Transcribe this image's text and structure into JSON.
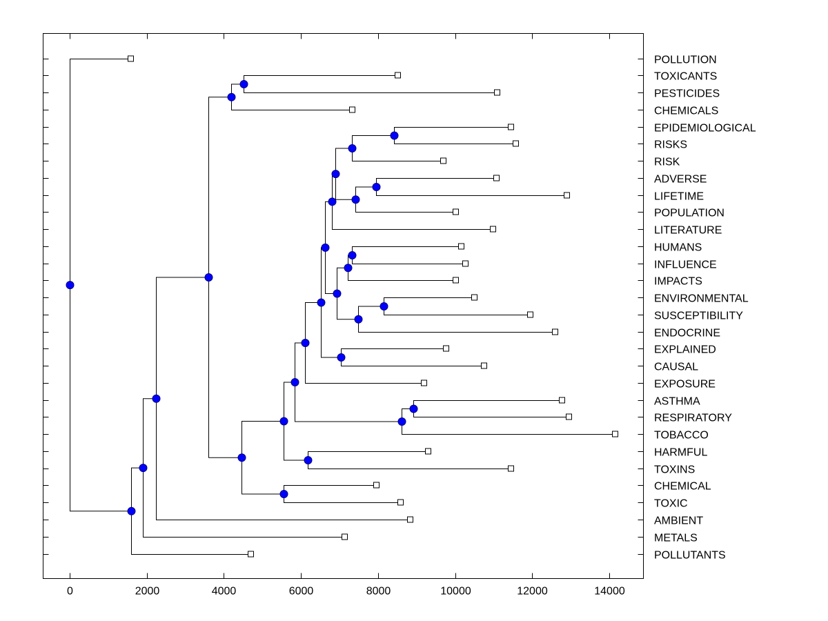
{
  "chart_data": {
    "type": "dendrogram",
    "title": "",
    "xlabel": "",
    "ylabel": "",
    "xlim": [
      -700,
      14880
    ],
    "x_ticks": [
      0,
      2000,
      4000,
      6000,
      8000,
      10000,
      12000,
      14000
    ],
    "x_tick_labels": [
      "0",
      "2000",
      "4000",
      "6000",
      "8000",
      "10000",
      "12000",
      "14000"
    ],
    "grid": false,
    "leaf_label_position": "right",
    "colors": {
      "node_fill": "#0000ff",
      "node_stroke": "#000080",
      "leaf_fill": "#ffffff",
      "line": "#000000"
    },
    "leaves": [
      {
        "id": "POLLUTION",
        "label": "POLLUTION",
        "value": 1593
      },
      {
        "id": "TOXICANTS",
        "label": "TOXICANTS",
        "value": 8521
      },
      {
        "id": "PESTICIDES",
        "label": "PESTICIDES",
        "value": 11099
      },
      {
        "id": "CHEMICALS",
        "label": "CHEMICALS",
        "value": 7340
      },
      {
        "id": "EPIDEMIOLOGICAL",
        "label": "EPIDEMIOLOGICAL",
        "value": 11457
      },
      {
        "id": "RISKS",
        "label": "RISKS",
        "value": 11583
      },
      {
        "id": "RISK",
        "label": "RISK",
        "value": 9703
      },
      {
        "id": "ADVERSE",
        "label": "ADVERSE",
        "value": 11081
      },
      {
        "id": "LIFETIME",
        "label": "LIFETIME",
        "value": 12907
      },
      {
        "id": "POPULATION",
        "label": "POPULATION",
        "value": 10025
      },
      {
        "id": "LITERATURE",
        "label": "LITERATURE",
        "value": 10992
      },
      {
        "id": "HUMANS",
        "label": "HUMANS",
        "value": 10168
      },
      {
        "id": "INFLUENCE",
        "label": "INFLUENCE",
        "value": 10276
      },
      {
        "id": "IMPACTS",
        "label": "IMPACTS",
        "value": 10025
      },
      {
        "id": "ENVIRONMENTAL",
        "label": "ENVIRONMENTAL",
        "value": 10508
      },
      {
        "id": "SUSCEPTIBILITY",
        "label": "SUSCEPTIBILITY",
        "value": 11958
      },
      {
        "id": "ENDOCRINE",
        "label": "ENDOCRINE",
        "value": 12603
      },
      {
        "id": "EXPLAINED",
        "label": "EXPLAINED",
        "value": 9775
      },
      {
        "id": "CAUSAL",
        "label": "CAUSAL",
        "value": 10759
      },
      {
        "id": "EXPOSURE",
        "label": "EXPOSURE",
        "value": 9202
      },
      {
        "id": "ASTHMA",
        "label": "ASTHMA",
        "value": 12782
      },
      {
        "id": "RESPIRATORY",
        "label": "RESPIRATORY",
        "value": 12961
      },
      {
        "id": "TOBACCO",
        "label": "TOBACCO",
        "value": 14161
      },
      {
        "id": "HARMFUL",
        "label": "HARMFUL",
        "value": 9309
      },
      {
        "id": "TOXINS",
        "label": "TOXINS",
        "value": 11457
      },
      {
        "id": "CHEMICAL",
        "label": "CHEMICAL",
        "value": 7966
      },
      {
        "id": "TOXIC",
        "label": "TOXIC",
        "value": 8593
      },
      {
        "id": "AMBIENT",
        "label": "AMBIENT",
        "value": 8844
      },
      {
        "id": "METALS",
        "label": "METALS",
        "value": 7143
      },
      {
        "id": "POLLUTANTS",
        "label": "POLLUTANTS",
        "value": 4708
      }
    ],
    "nodes": [
      {
        "id": "n_root",
        "value": 0,
        "children": [
          "POLLUTION",
          "n_aa"
        ]
      },
      {
        "id": "n_aa",
        "value": 1593,
        "children": [
          "n_z",
          "POLLUTANTS"
        ]
      },
      {
        "id": "n_z",
        "value": 1898,
        "children": [
          "n_y",
          "METALS"
        ]
      },
      {
        "id": "n_y",
        "value": 2238,
        "children": [
          "n_v",
          "AMBIENT"
        ]
      },
      {
        "id": "n_v",
        "value": 3598,
        "children": [
          "n_w",
          "n_t"
        ]
      },
      {
        "id": "n_w",
        "value": 4189,
        "children": [
          "n_x",
          "CHEMICALS"
        ]
      },
      {
        "id": "n_x",
        "value": 4511,
        "children": [
          "TOXICANTS",
          "PESTICIDES"
        ]
      },
      {
        "id": "n_t",
        "value": 4458,
        "children": [
          "n_r",
          "n_u"
        ]
      },
      {
        "id": "n_u",
        "value": 5550,
        "children": [
          "CHEMICAL",
          "TOXIC"
        ]
      },
      {
        "id": "n_r",
        "value": 5550,
        "children": [
          "n_o",
          "n_s"
        ]
      },
      {
        "id": "n_s",
        "value": 6176,
        "children": [
          "HARMFUL",
          "TOXINS"
        ]
      },
      {
        "id": "n_o",
        "value": 5836,
        "children": [
          "n_n",
          "n_p"
        ]
      },
      {
        "id": "n_p",
        "value": 8611,
        "children": [
          "n_q",
          "TOBACCO"
        ]
      },
      {
        "id": "n_q",
        "value": 8915,
        "children": [
          "ASTHMA",
          "RESPIRATORY"
        ]
      },
      {
        "id": "n_n",
        "value": 6105,
        "children": [
          "n_l",
          "EXPOSURE"
        ]
      },
      {
        "id": "n_l",
        "value": 6516,
        "children": [
          "n_f",
          "n_m"
        ]
      },
      {
        "id": "n_m",
        "value": 7035,
        "children": [
          "EXPLAINED",
          "CAUSAL"
        ]
      },
      {
        "id": "n_f",
        "value": 6624,
        "children": [
          "n_e",
          "n_g"
        ]
      },
      {
        "id": "n_g",
        "value": 6928,
        "children": [
          "n_h",
          "n_i"
        ]
      },
      {
        "id": "n_h",
        "value": 7214,
        "children": [
          "n_j",
          "IMPACTS"
        ]
      },
      {
        "id": "n_j",
        "value": 7322,
        "children": [
          "HUMANS",
          "INFLUENCE"
        ]
      },
      {
        "id": "n_i",
        "value": 7483,
        "children": [
          "n_k",
          "ENDOCRINE"
        ]
      },
      {
        "id": "n_k",
        "value": 8145,
        "children": [
          "ENVIRONMENTAL",
          "SUSCEPTIBILITY"
        ]
      },
      {
        "id": "n_e",
        "value": 6803,
        "children": [
          "n_d",
          "LITERATURE"
        ]
      },
      {
        "id": "n_d",
        "value": 6892,
        "children": [
          "n_a",
          "n_c"
        ]
      },
      {
        "id": "n_a",
        "value": 7322,
        "children": [
          "n_ab",
          "RISK"
        ]
      },
      {
        "id": "n_ab",
        "value": 8414,
        "children": [
          "EPIDEMIOLOGICAL",
          "RISKS"
        ]
      },
      {
        "id": "n_c",
        "value": 7411,
        "children": [
          "n_b",
          "POPULATION"
        ]
      },
      {
        "id": "n_b",
        "value": 7948,
        "children": [
          "ADVERSE",
          "LIFETIME"
        ]
      }
    ]
  }
}
